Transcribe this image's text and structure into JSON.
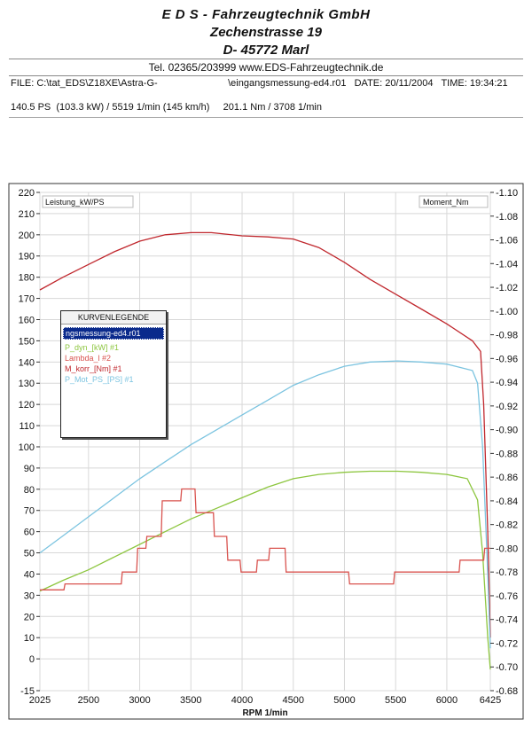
{
  "header": {
    "company": "E D S - Fahrzeugtechnik GmbH",
    "street": "Zechenstrasse 19",
    "city": "D- 45772 Marl",
    "contact": "Tel. 02365/203999    www.EDS-Fahrzeugtechnik.de"
  },
  "fileinfo": {
    "file": "FILE: C:\\tat_EDS\\Z18XE\\Astra-G-                          \\eingangsmessung-ed4.r01   DATE: 20/11/2004   TIME: 19:34:21"
  },
  "result": "140.5 PS  (103.3 kW) / 5519 1/min (145 km/h)     201.1 Nm / 3708 1/min",
  "legend": {
    "title": "KURVENLEGENDE",
    "file": "ngsmessung-ed4.r01",
    "items": [
      "P_dyn_[kW] #1",
      "Lambda_l #2",
      "M_korr_[Nm] #1",
      "P_Mot_PS_[PS] #1"
    ]
  },
  "colors": {
    "green": "#8dc63f",
    "red_dark": "#c0272d",
    "red": "#d9534f",
    "blue": "#7cc4e0"
  },
  "chart_data": {
    "type": "line",
    "xlabel": "RPM  1/min",
    "left_axis_label": "Leistung_kW/PS",
    "right_axis_label": "Moment_Nm",
    "xlim": [
      2025,
      6425
    ],
    "ylim_left": [
      -15,
      220
    ],
    "ylim_right": [
      0.68,
      1.1
    ],
    "x_ticks": [
      "2025",
      "2500",
      "3000",
      "3500",
      "4000",
      "4500",
      "5000",
      "5500",
      "6000",
      "6425"
    ],
    "y_left_ticks": [
      "220",
      "210",
      "200",
      "190",
      "180",
      "170",
      "160",
      "150",
      "140",
      "130",
      "120",
      "110",
      "100",
      "90",
      "80",
      "70",
      "60",
      "50",
      "40",
      "30",
      "20",
      "10",
      "0",
      "-15"
    ],
    "y_right_ticks": [
      "-1.10",
      "-1.08",
      "-1.06",
      "-1.04",
      "-1.02",
      "-1.00",
      "-0.98",
      "-0.96",
      "-0.94",
      "-0.92",
      "-0.90",
      "-0.88",
      "-0.86",
      "-0.84",
      "-0.82",
      "-0.80",
      "-0.78",
      "-0.76",
      "-0.74",
      "-0.72",
      "-0.70",
      "-0.68"
    ],
    "series": [
      {
        "name": "M_korr_[Nm] #1",
        "axis": "left",
        "color": "#c0272d",
        "x": [
          2025,
          2250,
          2500,
          2750,
          3000,
          3250,
          3500,
          3700,
          4000,
          4250,
          4500,
          4750,
          5000,
          5250,
          5500,
          5750,
          6000,
          6250,
          6330,
          6360,
          6400,
          6425
        ],
        "y": [
          174,
          180,
          186,
          192,
          197,
          200,
          201,
          201,
          199.5,
          199,
          198,
          194,
          187,
          179,
          172,
          165,
          158,
          150,
          145,
          120,
          60,
          10
        ]
      },
      {
        "name": "P_Mot_PS_[PS] #1",
        "axis": "left",
        "color": "#7cc4e0",
        "x": [
          2025,
          2250,
          2500,
          2750,
          3000,
          3250,
          3500,
          3750,
          4000,
          4250,
          4500,
          4750,
          5000,
          5250,
          5519,
          5750,
          6000,
          6250,
          6300,
          6350,
          6400,
          6425
        ],
        "y": [
          50,
          58,
          67,
          76,
          85,
          93,
          101,
          108,
          115,
          122,
          129,
          134,
          138,
          140,
          140.5,
          140,
          139,
          136,
          130,
          100,
          40,
          5
        ]
      },
      {
        "name": "P_dyn_[kW] #1",
        "axis": "left",
        "color": "#8dc63f",
        "x": [
          2025,
          2250,
          2500,
          2750,
          3000,
          3250,
          3500,
          3750,
          4000,
          4250,
          4500,
          4750,
          5000,
          5250,
          5519,
          5750,
          6000,
          6200,
          6300,
          6350,
          6400,
          6425
        ],
        "y": [
          32,
          37,
          42,
          48,
          54,
          60,
          66,
          71,
          76,
          81,
          85,
          87,
          88,
          88.5,
          88.5,
          88,
          87,
          85,
          75,
          50,
          10,
          -5
        ]
      },
      {
        "name": "Lambda_l #2",
        "axis": "right",
        "color": "#d9534f",
        "step": true,
        "x": [
          2025,
          2260,
          2270,
          2820,
          2830,
          2970,
          2980,
          3060,
          3070,
          3210,
          3220,
          3400,
          3410,
          3540,
          3550,
          3720,
          3730,
          3850,
          3860,
          3980,
          3990,
          4140,
          4150,
          4260,
          4270,
          4420,
          4430,
          5040,
          5050,
          5480,
          5490,
          6120,
          6130,
          6360,
          6370,
          6425
        ],
        "y": [
          0.765,
          0.765,
          0.77,
          0.77,
          0.78,
          0.78,
          0.8,
          0.8,
          0.81,
          0.81,
          0.84,
          0.84,
          0.85,
          0.85,
          0.83,
          0.83,
          0.81,
          0.81,
          0.79,
          0.79,
          0.78,
          0.78,
          0.79,
          0.79,
          0.8,
          0.8,
          0.78,
          0.78,
          0.77,
          0.77,
          0.78,
          0.78,
          0.79,
          0.79,
          0.8,
          0.8
        ]
      }
    ]
  }
}
